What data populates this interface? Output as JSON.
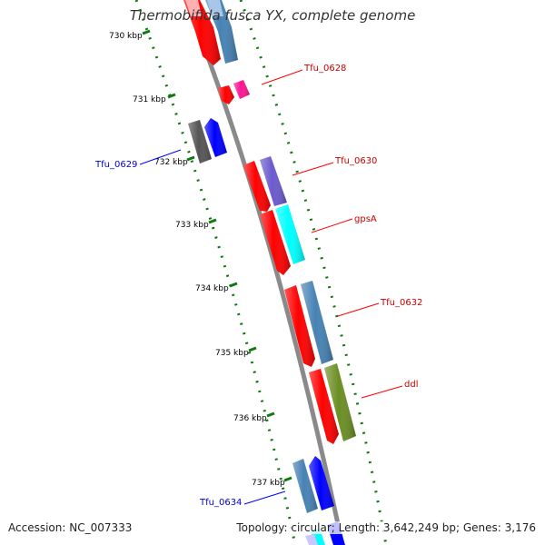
{
  "title": "Thermobifida fusca YX, complete genome",
  "footer": {
    "accession": "Accession: NC_007333",
    "summary": "Topology: circular; Length: 3,642,249 bp; Genes: 3,176"
  },
  "ticks": [
    {
      "label": "730 kbp"
    },
    {
      "label": "731 kbp"
    },
    {
      "label": "732 kbp"
    },
    {
      "label": "733 kbp"
    },
    {
      "label": "734 kbp"
    },
    {
      "label": "735 kbp"
    },
    {
      "label": "736 kbp"
    },
    {
      "label": "737 kbp"
    }
  ],
  "gene_labels": [
    {
      "text": "Tfu_0628",
      "strand": "forward",
      "color": "#cc0000"
    },
    {
      "text": "Tfu_0629",
      "strand": "reverse",
      "color": "#0000cc"
    },
    {
      "text": "Tfu_0630",
      "strand": "forward",
      "color": "#cc0000"
    },
    {
      "text": "gpsA",
      "strand": "forward",
      "color": "#cc0000"
    },
    {
      "text": "Tfu_0632",
      "strand": "forward",
      "color": "#cc0000"
    },
    {
      "text": "ddl",
      "strand": "forward",
      "color": "#cc0000"
    },
    {
      "text": "Tfu_0634",
      "strand": "reverse",
      "color": "#0000cc"
    }
  ],
  "colors": {
    "backbone": "#888888",
    "tick": "#117711",
    "cds": "#ff0000",
    "cog_blue": "#4682b4",
    "cog_pink": "#ff1493",
    "cog_gray": "#555555",
    "cog_navy": "#0000ff",
    "cog_purple": "#6a5acd",
    "cog_cyan": "#00ffff",
    "cog_olive": "#6b8e23"
  }
}
